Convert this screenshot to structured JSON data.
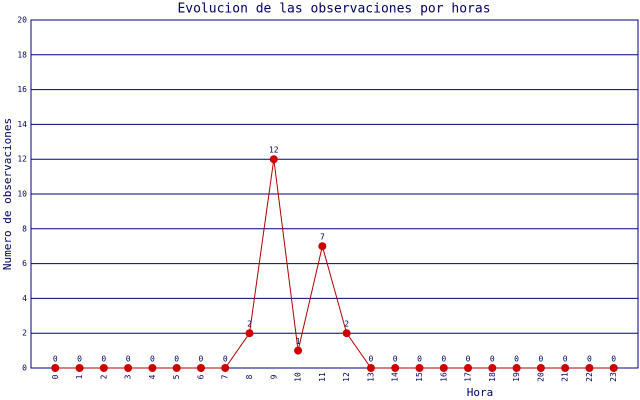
{
  "chart_data": {
    "type": "line",
    "title": "Evolucion de las observaciones por horas",
    "x_label": "Hora",
    "y_label": "Numero de observaciones",
    "categories": [
      "0",
      "1",
      "2",
      "3",
      "4",
      "5",
      "6",
      "7",
      "8",
      "9",
      "10",
      "11",
      "12",
      "13",
      "14",
      "15",
      "16",
      "17",
      "18",
      "19",
      "20",
      "21",
      "22",
      "23"
    ],
    "values": [
      0,
      0,
      0,
      0,
      0,
      0,
      0,
      0,
      2,
      12,
      1,
      7,
      2,
      0,
      0,
      0,
      0,
      0,
      0,
      0,
      0,
      0,
      0,
      0
    ],
    "color": "#cc0000",
    "line_color": "#b00000",
    "grid_color": "#000080",
    "ylim": [
      0,
      20
    ],
    "yticks": [
      0,
      2,
      4,
      6,
      8,
      10,
      12,
      14,
      16,
      18,
      20
    ],
    "grid": true
  }
}
